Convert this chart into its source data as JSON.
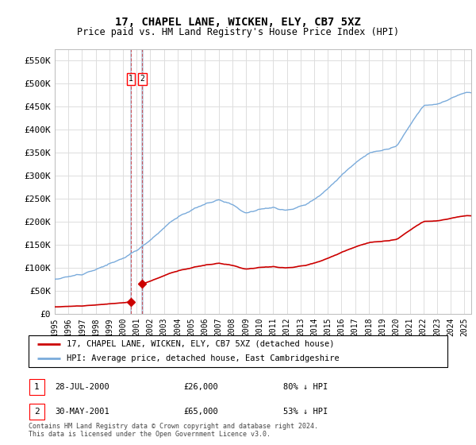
{
  "title": "17, CHAPEL LANE, WICKEN, ELY, CB7 5XZ",
  "subtitle": "Price paid vs. HM Land Registry's House Price Index (HPI)",
  "legend_label_red": "17, CHAPEL LANE, WICKEN, ELY, CB7 5XZ (detached house)",
  "legend_label_blue": "HPI: Average price, detached house, East Cambridgeshire",
  "footer": "Contains HM Land Registry data © Crown copyright and database right 2024.\nThis data is licensed under the Open Government Licence v3.0.",
  "transactions": [
    {
      "id": 1,
      "date_str": "28-JUL-2000",
      "date_num": 2000.57,
      "price": 26000,
      "pct": "80% ↓ HPI"
    },
    {
      "id": 2,
      "date_str": "30-MAY-2001",
      "date_num": 2001.41,
      "price": 65000,
      "pct": "53% ↓ HPI"
    }
  ],
  "ylim": [
    0,
    575000
  ],
  "yticks": [
    0,
    50000,
    100000,
    150000,
    200000,
    250000,
    300000,
    350000,
    400000,
    450000,
    500000,
    550000
  ],
  "ytick_labels": [
    "£0",
    "£50K",
    "£100K",
    "£150K",
    "£200K",
    "£250K",
    "£300K",
    "£350K",
    "£400K",
    "£450K",
    "£500K",
    "£550K"
  ],
  "xlim_start": 1995.0,
  "xlim_end": 2025.5,
  "xtick_years": [
    1995,
    1996,
    1997,
    1998,
    1999,
    2000,
    2001,
    2002,
    2003,
    2004,
    2005,
    2006,
    2007,
    2008,
    2009,
    2010,
    2011,
    2012,
    2013,
    2014,
    2015,
    2016,
    2017,
    2018,
    2019,
    2020,
    2021,
    2022,
    2023,
    2024,
    2025
  ],
  "red_color": "#cc0000",
  "blue_color": "#7aabdb",
  "vline_color": "#c8d8e8",
  "grid_color": "#dddddd",
  "background_color": "#ffffff",
  "hpi_base": [
    75000,
    80000,
    87000,
    96000,
    108000,
    120000,
    138000,
    160000,
    187000,
    210000,
    225000,
    238000,
    248000,
    238000,
    218000,
    228000,
    230000,
    225000,
    232000,
    248000,
    272000,
    300000,
    328000,
    348000,
    355000,
    362000,
    408000,
    452000,
    455000,
    468000,
    480000
  ],
  "hpi_years_base": [
    1995,
    1996,
    1997,
    1998,
    1999,
    2000,
    2001,
    2002,
    2003,
    2004,
    2005,
    2006,
    2007,
    2008,
    2009,
    2010,
    2011,
    2012,
    2013,
    2014,
    2015,
    2016,
    2017,
    2018,
    2019,
    2020,
    2021,
    2022,
    2023,
    2024,
    2025
  ]
}
